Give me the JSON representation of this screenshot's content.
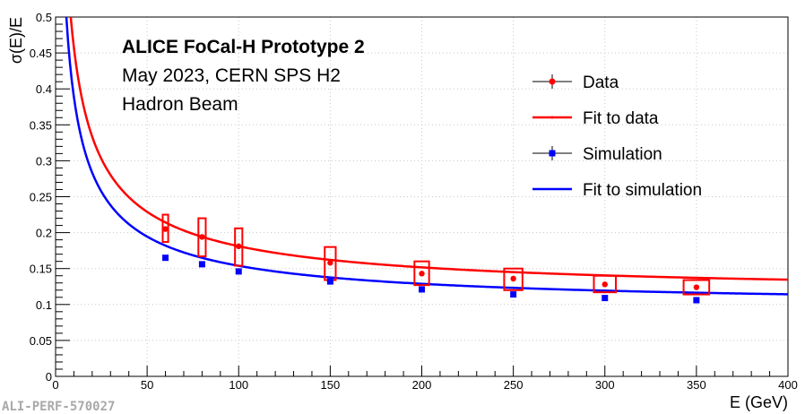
{
  "chart_data": {
    "type": "scatter",
    "xlabel": "E (GeV)",
    "ylabel": "σ(E)/E",
    "xlim": [
      0,
      400
    ],
    "ylim": [
      0,
      0.5
    ],
    "x_ticks": [
      0,
      50,
      100,
      150,
      200,
      250,
      300,
      350,
      400
    ],
    "y_ticks": [
      0,
      0.05,
      0.1,
      0.15,
      0.2,
      0.25,
      0.3,
      0.35,
      0.4,
      0.45,
      0.5
    ],
    "x_tick_labels": [
      "0",
      "50",
      "100",
      "150",
      "200",
      "250",
      "300",
      "350",
      "400"
    ],
    "y_tick_labels": [
      "0",
      "0.05",
      "0.1",
      "0.15",
      "0.2",
      "0.25",
      "0.3",
      "0.35",
      "0.4",
      "0.45",
      "0.5"
    ],
    "grid": true,
    "annotations": [
      "ALICE FoCal-H Prototype 2",
      "May 2023, CERN SPS H2",
      "Hadron Beam"
    ],
    "series": [
      {
        "name": "Data",
        "color": "#ff0000",
        "marker": "circle",
        "x": [
          60,
          80,
          100,
          150,
          200,
          250,
          300,
          350
        ],
        "y": [
          0.205,
          0.194,
          0.181,
          0.158,
          0.143,
          0.136,
          0.128,
          0.124
        ],
        "syst_low": [
          0.187,
          0.167,
          0.154,
          0.134,
          0.127,
          0.12,
          0.117,
          0.114
        ],
        "syst_high": [
          0.225,
          0.22,
          0.206,
          0.18,
          0.16,
          0.15,
          0.14,
          0.134
        ],
        "syst_halfwidth_x": [
          1.5,
          2,
          2,
          3,
          4,
          5,
          6,
          7
        ]
      },
      {
        "name": "Fit to data",
        "color": "#ff0000",
        "type": "line",
        "function": "sqrt(a^2/E + b^2)",
        "a": 1.4,
        "b": 0.1149
      },
      {
        "name": "Simulation",
        "color": "#0000ff",
        "marker": "square",
        "x": [
          60,
          80,
          100,
          150,
          200,
          250,
          300,
          350
        ],
        "y": [
          0.165,
          0.156,
          0.146,
          0.132,
          0.121,
          0.114,
          0.109,
          0.106
        ]
      },
      {
        "name": "Fit to simulation",
        "color": "#0000ff",
        "type": "line",
        "function": "sqrt(a^2/E + b^2)",
        "a": 1.19,
        "b": 0.0975
      }
    ],
    "legend": {
      "position": "top-right",
      "entries": [
        "Data",
        "Fit to data",
        "Simulation",
        "Fit to simulation"
      ]
    }
  },
  "watermark": "ALI-PERF-570027"
}
